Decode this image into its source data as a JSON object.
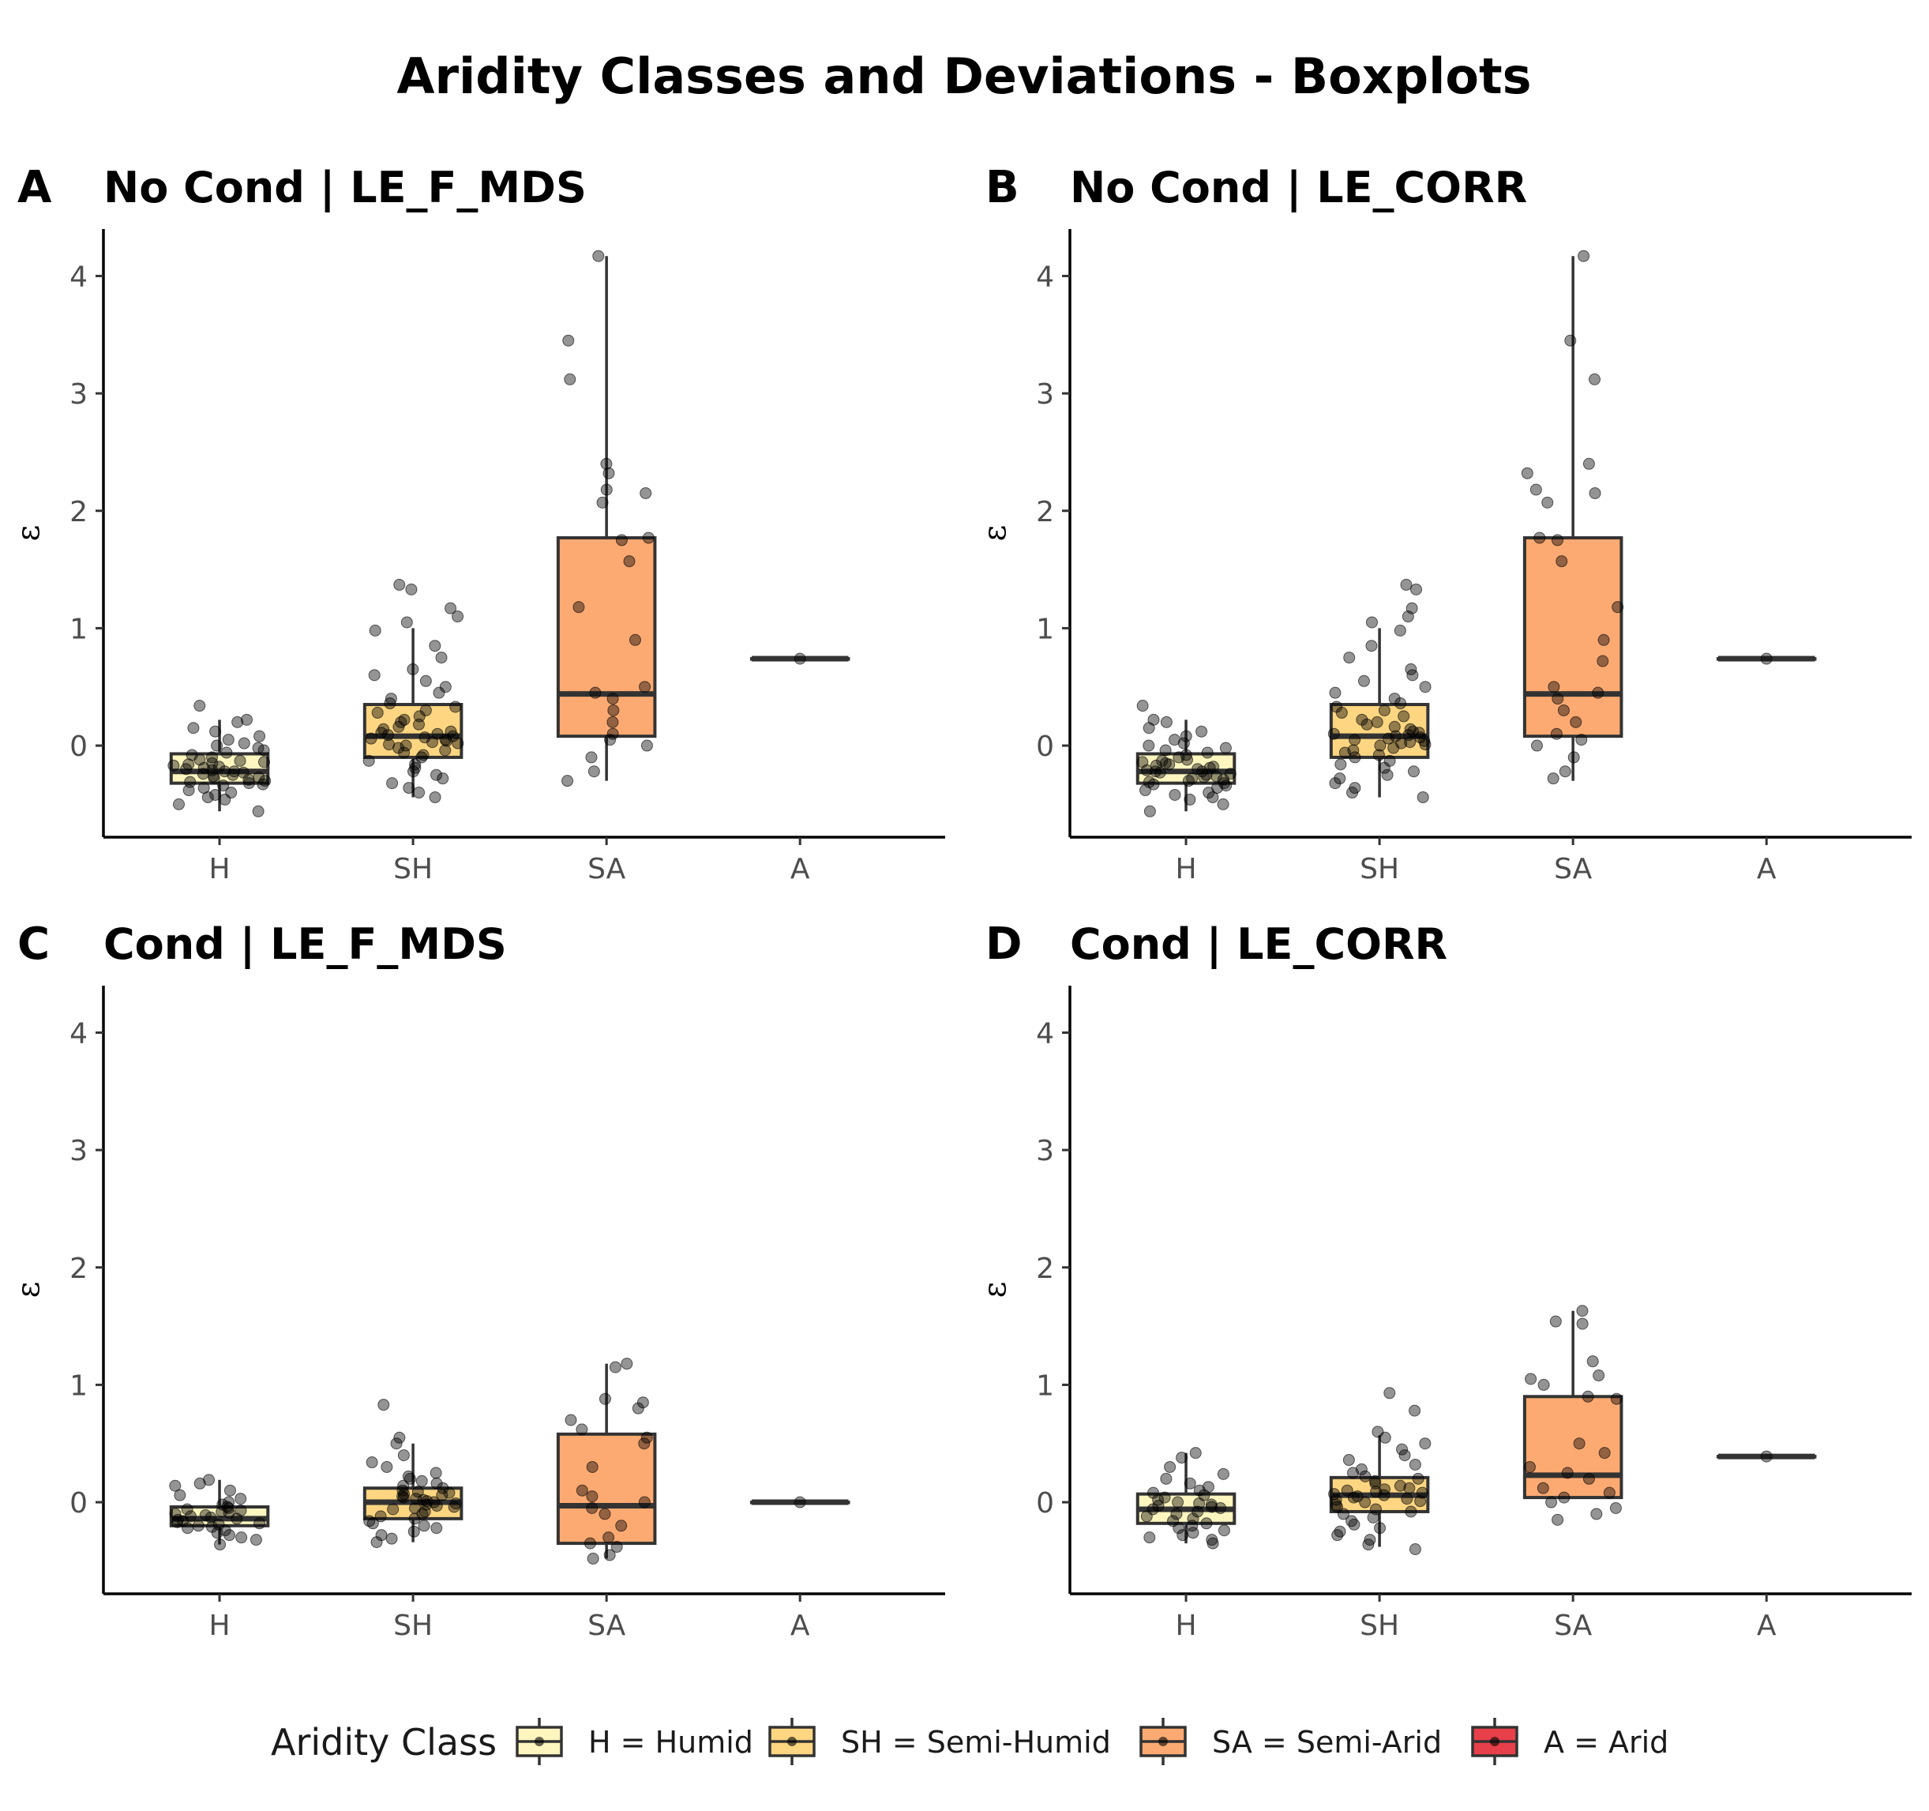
{
  "title": "Aridity Classes and Deviations - Boxplots",
  "colors": {
    "H": "#fff6bf",
    "SH": "#fed681",
    "SA": "#fdaa72",
    "A": "#e8404a",
    "box_stroke": "#333333",
    "points": "#000000"
  },
  "legend": {
    "title": "Aridity Class",
    "items": [
      {
        "key": "H",
        "label": "H = Humid"
      },
      {
        "key": "SH",
        "label": "SH = Semi-Humid"
      },
      {
        "key": "SA",
        "label": "SA = Semi-Arid"
      },
      {
        "key": "A",
        "label": "A = Arid"
      }
    ]
  },
  "chart_data": [
    {
      "type": "box",
      "letter": "A",
      "title": "No Cond | LE_F_MDS",
      "ylabel": "ε",
      "categories": [
        "H",
        "SH",
        "SA",
        "A"
      ],
      "yticks": [
        0,
        1,
        2,
        3,
        4
      ],
      "ylim": [
        -0.78,
        4.4
      ],
      "boxes": [
        {
          "cat": "H",
          "q1": -0.32,
          "median": -0.22,
          "q3": -0.07,
          "whisker_low": -0.56,
          "whisker_high": 0.22
        },
        {
          "cat": "SH",
          "q1": -0.1,
          "median": 0.08,
          "q3": 0.35,
          "whisker_low": -0.44,
          "whisker_high": 1.0
        },
        {
          "cat": "SA",
          "q1": 0.08,
          "median": 0.44,
          "q3": 1.77,
          "whisker_low": -0.3,
          "whisker_high": 4.17
        },
        {
          "cat": "A",
          "q1": 0.74,
          "median": 0.74,
          "q3": 0.74,
          "whisker_low": 0.74,
          "whisker_high": 0.74
        }
      ],
      "points": {
        "H": [
          -0.56,
          -0.5,
          -0.46,
          -0.44,
          -0.42,
          -0.4,
          -0.38,
          -0.36,
          -0.34,
          -0.33,
          -0.32,
          -0.31,
          -0.3,
          -0.29,
          -0.28,
          -0.27,
          -0.26,
          -0.25,
          -0.24,
          -0.23,
          -0.22,
          -0.22,
          -0.21,
          -0.2,
          -0.19,
          -0.18,
          -0.17,
          -0.16,
          -0.15,
          -0.14,
          -0.13,
          -0.12,
          -0.1,
          -0.08,
          -0.06,
          -0.04,
          -0.02,
          0.0,
          0.02,
          0.05,
          0.08,
          0.12,
          0.15,
          0.2,
          0.22,
          0.34
        ],
        "SH": [
          -0.44,
          -0.4,
          -0.36,
          -0.32,
          -0.28,
          -0.25,
          -0.22,
          -0.19,
          -0.16,
          -0.13,
          -0.1,
          -0.08,
          -0.06,
          -0.04,
          -0.02,
          0.0,
          0.01,
          0.02,
          0.03,
          0.04,
          0.05,
          0.06,
          0.07,
          0.08,
          0.09,
          0.1,
          0.11,
          0.12,
          0.14,
          0.16,
          0.18,
          0.2,
          0.22,
          0.25,
          0.28,
          0.3,
          0.33,
          0.36,
          0.4,
          0.45,
          0.5,
          0.55,
          0.6,
          0.65,
          0.75,
          0.85,
          0.98,
          1.05,
          1.1,
          1.17,
          1.33,
          1.37
        ],
        "SA": [
          -0.3,
          -0.22,
          -0.1,
          0.0,
          0.05,
          0.1,
          0.2,
          0.3,
          0.4,
          0.45,
          0.5,
          0.9,
          1.18,
          1.57,
          1.75,
          1.77,
          2.07,
          2.15,
          2.18,
          2.32,
          2.4,
          3.12,
          3.45,
          4.17
        ],
        "A": [
          0.74
        ]
      }
    },
    {
      "type": "box",
      "letter": "B",
      "title": "No Cond | LE_CORR",
      "ylabel": "ε",
      "categories": [
        "H",
        "SH",
        "SA",
        "A"
      ],
      "yticks": [
        0,
        1,
        2,
        3,
        4
      ],
      "ylim": [
        -0.78,
        4.4
      ],
      "boxes": [
        {
          "cat": "H",
          "q1": -0.32,
          "median": -0.22,
          "q3": -0.07,
          "whisker_low": -0.56,
          "whisker_high": 0.22
        },
        {
          "cat": "SH",
          "q1": -0.1,
          "median": 0.08,
          "q3": 0.35,
          "whisker_low": -0.44,
          "whisker_high": 1.0
        },
        {
          "cat": "SA",
          "q1": 0.08,
          "median": 0.44,
          "q3": 1.77,
          "whisker_low": -0.3,
          "whisker_high": 4.17
        },
        {
          "cat": "A",
          "q1": 0.74,
          "median": 0.74,
          "q3": 0.74,
          "whisker_low": 0.74,
          "whisker_high": 0.74
        }
      ],
      "points": {
        "H": [
          -0.56,
          -0.5,
          -0.46,
          -0.44,
          -0.42,
          -0.4,
          -0.38,
          -0.36,
          -0.34,
          -0.33,
          -0.32,
          -0.31,
          -0.3,
          -0.29,
          -0.28,
          -0.27,
          -0.26,
          -0.25,
          -0.24,
          -0.23,
          -0.22,
          -0.22,
          -0.21,
          -0.2,
          -0.19,
          -0.18,
          -0.17,
          -0.16,
          -0.15,
          -0.14,
          -0.13,
          -0.12,
          -0.1,
          -0.08,
          -0.06,
          -0.04,
          -0.02,
          0.0,
          0.02,
          0.05,
          0.08,
          0.12,
          0.15,
          0.2,
          0.22,
          0.34
        ],
        "SH": [
          -0.44,
          -0.4,
          -0.36,
          -0.32,
          -0.28,
          -0.25,
          -0.22,
          -0.19,
          -0.16,
          -0.13,
          -0.1,
          -0.08,
          -0.06,
          -0.04,
          -0.02,
          0.0,
          0.01,
          0.02,
          0.03,
          0.04,
          0.05,
          0.06,
          0.07,
          0.08,
          0.09,
          0.1,
          0.11,
          0.12,
          0.14,
          0.16,
          0.18,
          0.2,
          0.22,
          0.25,
          0.28,
          0.3,
          0.33,
          0.36,
          0.4,
          0.45,
          0.5,
          0.55,
          0.6,
          0.65,
          0.75,
          0.85,
          0.98,
          1.05,
          1.1,
          1.17,
          1.33,
          1.37
        ],
        "SA": [
          -0.28,
          -0.22,
          -0.1,
          0.0,
          0.05,
          0.1,
          0.2,
          0.3,
          0.4,
          0.45,
          0.5,
          0.72,
          0.9,
          1.18,
          1.57,
          1.75,
          1.77,
          2.07,
          2.15,
          2.18,
          2.32,
          2.4,
          3.12,
          3.45,
          4.17
        ],
        "A": [
          0.74
        ]
      }
    },
    {
      "type": "box",
      "letter": "C",
      "title": "Cond | LE_F_MDS",
      "ylabel": "ε",
      "categories": [
        "H",
        "SH",
        "SA",
        "A"
      ],
      "yticks": [
        0,
        1,
        2,
        3,
        4
      ],
      "ylim": [
        -0.78,
        4.4
      ],
      "boxes": [
        {
          "cat": "H",
          "q1": -0.2,
          "median": -0.14,
          "q3": -0.04,
          "whisker_low": -0.36,
          "whisker_high": 0.19
        },
        {
          "cat": "SH",
          "q1": -0.14,
          "median": 0.0,
          "q3": 0.12,
          "whisker_low": -0.34,
          "whisker_high": 0.5
        },
        {
          "cat": "SA",
          "q1": -0.35,
          "median": -0.03,
          "q3": 0.58,
          "whisker_low": -0.48,
          "whisker_high": 1.18
        },
        {
          "cat": "A",
          "q1": 0.0,
          "median": 0.0,
          "q3": 0.0,
          "whisker_low": 0.0,
          "whisker_high": 0.0
        }
      ],
      "points": {
        "H": [
          -0.36,
          -0.32,
          -0.3,
          -0.28,
          -0.26,
          -0.24,
          -0.22,
          -0.21,
          -0.2,
          -0.19,
          -0.18,
          -0.17,
          -0.16,
          -0.15,
          -0.14,
          -0.13,
          -0.12,
          -0.11,
          -0.1,
          -0.09,
          -0.08,
          -0.07,
          -0.06,
          -0.05,
          -0.04,
          -0.02,
          0.0,
          0.03,
          0.06,
          0.1,
          0.14,
          0.16,
          0.19
        ],
        "SH": [
          -0.34,
          -0.31,
          -0.28,
          -0.25,
          -0.22,
          -0.2,
          -0.18,
          -0.16,
          -0.14,
          -0.12,
          -0.1,
          -0.08,
          -0.06,
          -0.05,
          -0.04,
          -0.03,
          -0.02,
          -0.01,
          0.0,
          0.01,
          0.02,
          0.03,
          0.04,
          0.05,
          0.06,
          0.07,
          0.08,
          0.09,
          0.1,
          0.12,
          0.14,
          0.16,
          0.18,
          0.2,
          0.22,
          0.25,
          0.3,
          0.34,
          0.4,
          0.5,
          0.55,
          0.83
        ],
        "SA": [
          -0.48,
          -0.45,
          -0.38,
          -0.35,
          -0.3,
          -0.2,
          -0.1,
          -0.05,
          0.0,
          0.05,
          0.1,
          0.3,
          0.5,
          0.55,
          0.62,
          0.7,
          0.8,
          0.85,
          0.88,
          1.15,
          1.18
        ],
        "A": [
          0.0
        ]
      }
    },
    {
      "type": "box",
      "letter": "D",
      "title": "Cond | LE_CORR",
      "ylabel": "ε",
      "categories": [
        "H",
        "SH",
        "SA",
        "A"
      ],
      "yticks": [
        0,
        1,
        2,
        3,
        4
      ],
      "ylim": [
        -0.78,
        4.4
      ],
      "boxes": [
        {
          "cat": "H",
          "q1": -0.18,
          "median": -0.06,
          "q3": 0.07,
          "whisker_low": -0.35,
          "whisker_high": 0.42
        },
        {
          "cat": "SH",
          "q1": -0.08,
          "median": 0.06,
          "q3": 0.21,
          "whisker_low": -0.38,
          "whisker_high": 0.57
        },
        {
          "cat": "SA",
          "q1": 0.04,
          "median": 0.23,
          "q3": 0.9,
          "whisker_low": 0.04,
          "whisker_high": 1.63
        },
        {
          "cat": "A",
          "q1": 0.39,
          "median": 0.39,
          "q3": 0.39,
          "whisker_low": 0.39,
          "whisker_high": 0.39
        }
      ],
      "points": {
        "H": [
          -0.35,
          -0.32,
          -0.3,
          -0.28,
          -0.26,
          -0.24,
          -0.22,
          -0.2,
          -0.18,
          -0.16,
          -0.14,
          -0.12,
          -0.1,
          -0.08,
          -0.06,
          -0.05,
          -0.04,
          -0.03,
          -0.02,
          -0.01,
          0.0,
          0.02,
          0.04,
          0.06,
          0.08,
          0.1,
          0.13,
          0.16,
          0.2,
          0.24,
          0.3,
          0.38,
          0.42
        ],
        "SH": [
          -0.4,
          -0.36,
          -0.32,
          -0.28,
          -0.25,
          -0.22,
          -0.19,
          -0.16,
          -0.13,
          -0.1,
          -0.08,
          -0.06,
          -0.04,
          -0.02,
          0.0,
          0.01,
          0.02,
          0.03,
          0.04,
          0.05,
          0.06,
          0.07,
          0.08,
          0.09,
          0.1,
          0.11,
          0.12,
          0.14,
          0.16,
          0.18,
          0.2,
          0.22,
          0.25,
          0.28,
          0.32,
          0.36,
          0.4,
          0.45,
          0.5,
          0.55,
          0.6,
          0.78,
          0.93
        ],
        "SA": [
          -0.15,
          -0.1,
          -0.05,
          0.0,
          0.04,
          0.08,
          0.12,
          0.2,
          0.25,
          0.3,
          0.42,
          0.5,
          0.88,
          0.9,
          1.0,
          1.05,
          1.08,
          1.2,
          1.52,
          1.54,
          1.63
        ],
        "A": [
          0.39
        ]
      }
    }
  ]
}
